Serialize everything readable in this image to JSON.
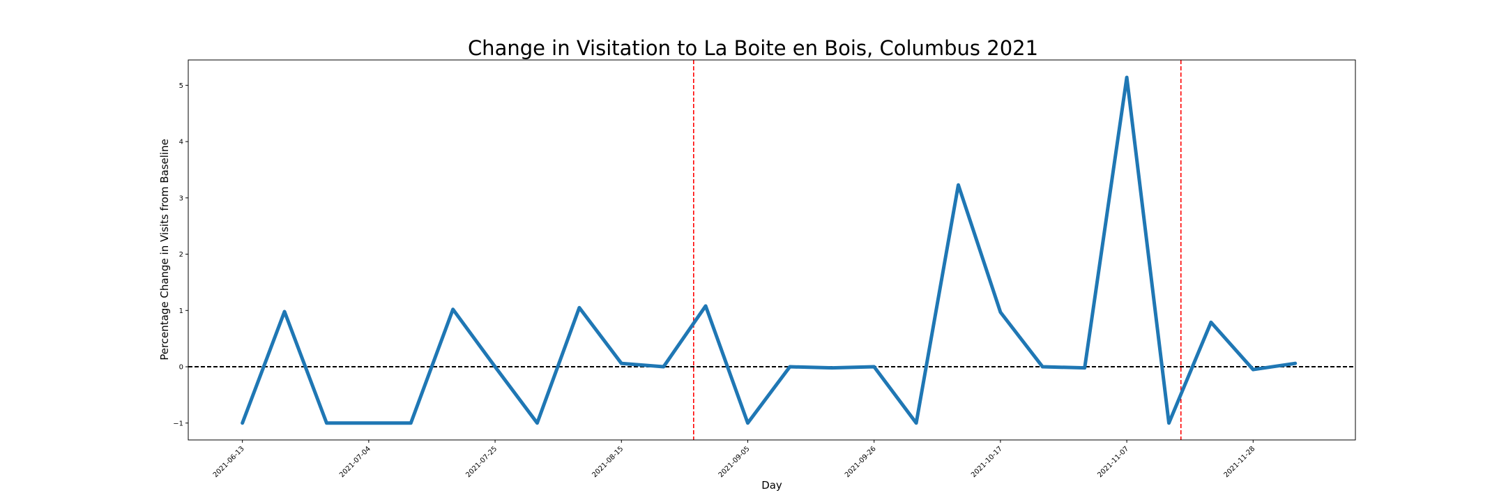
{
  "chart_data": {
    "type": "line",
    "title": "Change in Visitation to La Boite en Bois, Columbus 2021",
    "xlabel": "Day",
    "ylabel": "Percentage Change in Visits from Baseline",
    "x_tick_labels": [
      "2021-06-13",
      "2021-07-04",
      "2021-07-25",
      "2021-08-15",
      "2021-09-05",
      "2021-09-26",
      "2021-10-17",
      "2021-11-07",
      "2021-11-28"
    ],
    "y_tick_labels": [
      "−1",
      "0",
      "1",
      "2",
      "3",
      "4",
      "5"
    ],
    "y_ticks": [
      -1,
      0,
      1,
      2,
      3,
      4,
      5
    ],
    "xlim": [
      "2021-06-04",
      "2021-12-15"
    ],
    "ylim": [
      -1.3,
      5.45
    ],
    "grid": false,
    "series": [
      {
        "color": "#1f77b4",
        "points": [
          {
            "x": "2021-06-13",
            "y": -1.0
          },
          {
            "x": "2021-06-20",
            "y": 0.98
          },
          {
            "x": "2021-06-27",
            "y": -1.0
          },
          {
            "x": "2021-07-04",
            "y": -1.0
          },
          {
            "x": "2021-07-11",
            "y": -1.0
          },
          {
            "x": "2021-07-18",
            "y": 1.02
          },
          {
            "x": "2021-07-25",
            "y": 0.0
          },
          {
            "x": "2021-08-01",
            "y": -1.0
          },
          {
            "x": "2021-08-08",
            "y": 1.05
          },
          {
            "x": "2021-08-15",
            "y": 0.06
          },
          {
            "x": "2021-08-22",
            "y": 0.0
          },
          {
            "x": "2021-08-29",
            "y": 1.08
          },
          {
            "x": "2021-09-05",
            "y": -1.0
          },
          {
            "x": "2021-09-12",
            "y": 0.0
          },
          {
            "x": "2021-09-19",
            "y": -0.02
          },
          {
            "x": "2021-09-26",
            "y": 0.0
          },
          {
            "x": "2021-10-03",
            "y": -1.0
          },
          {
            "x": "2021-10-10",
            "y": 3.23
          },
          {
            "x": "2021-10-17",
            "y": 0.97
          },
          {
            "x": "2021-10-24",
            "y": 0.0
          },
          {
            "x": "2021-10-31",
            "y": -0.02
          },
          {
            "x": "2021-11-07",
            "y": 5.14
          },
          {
            "x": "2021-11-14",
            "y": -1.0
          },
          {
            "x": "2021-11-21",
            "y": 0.79
          },
          {
            "x": "2021-11-28",
            "y": -0.05
          },
          {
            "x": "2021-12-05",
            "y": 0.06
          }
        ]
      }
    ],
    "reference_lines": {
      "horizontal": {
        "y": 0,
        "color": "#000000",
        "style": "dashed"
      },
      "vertical": [
        {
          "x": "2021-08-27",
          "color": "#ff0000",
          "style": "dashed"
        },
        {
          "x": "2021-11-16",
          "color": "#ff0000",
          "style": "dashed"
        }
      ]
    }
  }
}
